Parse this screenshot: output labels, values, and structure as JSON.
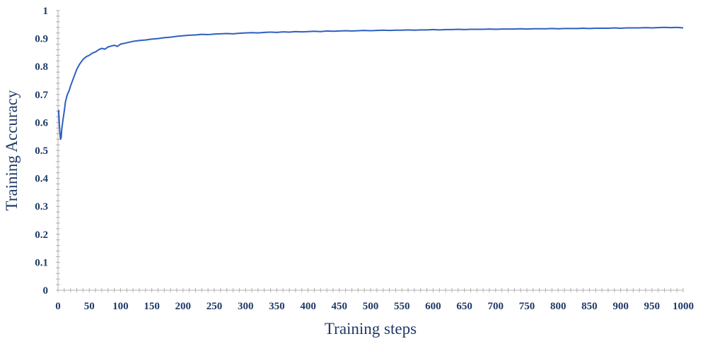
{
  "chart_data": {
    "type": "line",
    "title": "",
    "xlabel": "Training steps",
    "ylabel": "Training Accuracy",
    "xlim": [
      0,
      1000
    ],
    "ylim": [
      0,
      1
    ],
    "x_ticks": [
      0,
      50,
      100,
      150,
      200,
      250,
      300,
      350,
      400,
      450,
      500,
      550,
      600,
      650,
      700,
      750,
      800,
      850,
      900,
      950,
      1000
    ],
    "y_ticks": [
      0,
      0.1,
      0.2,
      0.3,
      0.4,
      0.5,
      0.6,
      0.7,
      0.8,
      0.9,
      1
    ],
    "y_tick_labels": [
      "0",
      "0.1",
      "0.2",
      "0.3",
      "0.4",
      "0.5",
      "0.6",
      "0.7",
      "0.8",
      "0.9",
      "1"
    ],
    "x_tick_labels": [
      "0",
      "50",
      "100",
      "150",
      "200",
      "250",
      "300",
      "350",
      "400",
      "450",
      "500",
      "550",
      "600",
      "650",
      "700",
      "750",
      "800",
      "850",
      "900",
      "950",
      "1000"
    ],
    "grid": false,
    "line_color": "#2e5fbf",
    "text_color": "#1f3a66",
    "series": [
      {
        "x": [
          1,
          2,
          3,
          4,
          5,
          6,
          8,
          10,
          12,
          15,
          18,
          20,
          25,
          30,
          35,
          40,
          45,
          50,
          55,
          60,
          65,
          70,
          75,
          80,
          85,
          90,
          95,
          100,
          110,
          120,
          130,
          140,
          150,
          160,
          170,
          180,
          190,
          200,
          210,
          220,
          230,
          240,
          250,
          260,
          270,
          280,
          290,
          300,
          310,
          320,
          330,
          340,
          350,
          360,
          370,
          380,
          390,
          400,
          410,
          420,
          430,
          440,
          450,
          460,
          470,
          480,
          490,
          500,
          510,
          520,
          530,
          540,
          550,
          560,
          570,
          580,
          590,
          600,
          610,
          620,
          630,
          640,
          650,
          660,
          670,
          680,
          690,
          700,
          710,
          720,
          730,
          740,
          750,
          760,
          770,
          780,
          790,
          800,
          810,
          820,
          830,
          840,
          850,
          860,
          870,
          880,
          890,
          900,
          910,
          920,
          930,
          940,
          950,
          960,
          970,
          980,
          990,
          1000
        ],
        "values": [
          0.645,
          0.6,
          0.565,
          0.54,
          0.545,
          0.575,
          0.61,
          0.64,
          0.675,
          0.7,
          0.715,
          0.73,
          0.76,
          0.79,
          0.81,
          0.825,
          0.835,
          0.84,
          0.848,
          0.852,
          0.86,
          0.865,
          0.862,
          0.87,
          0.873,
          0.876,
          0.872,
          0.88,
          0.885,
          0.89,
          0.893,
          0.895,
          0.898,
          0.9,
          0.903,
          0.905,
          0.908,
          0.91,
          0.912,
          0.913,
          0.915,
          0.914,
          0.916,
          0.917,
          0.918,
          0.917,
          0.919,
          0.92,
          0.921,
          0.92,
          0.922,
          0.923,
          0.922,
          0.924,
          0.923,
          0.925,
          0.924,
          0.925,
          0.926,
          0.925,
          0.927,
          0.926,
          0.927,
          0.928,
          0.927,
          0.928,
          0.929,
          0.928,
          0.929,
          0.93,
          0.929,
          0.93,
          0.93,
          0.931,
          0.93,
          0.931,
          0.931,
          0.932,
          0.931,
          0.932,
          0.932,
          0.933,
          0.932,
          0.933,
          0.933,
          0.933,
          0.934,
          0.933,
          0.934,
          0.934,
          0.934,
          0.935,
          0.934,
          0.935,
          0.935,
          0.935,
          0.936,
          0.935,
          0.936,
          0.936,
          0.936,
          0.937,
          0.936,
          0.937,
          0.937,
          0.937,
          0.938,
          0.937,
          0.938,
          0.938,
          0.938,
          0.939,
          0.938,
          0.939,
          0.94,
          0.939,
          0.94,
          0.938
        ]
      }
    ]
  }
}
